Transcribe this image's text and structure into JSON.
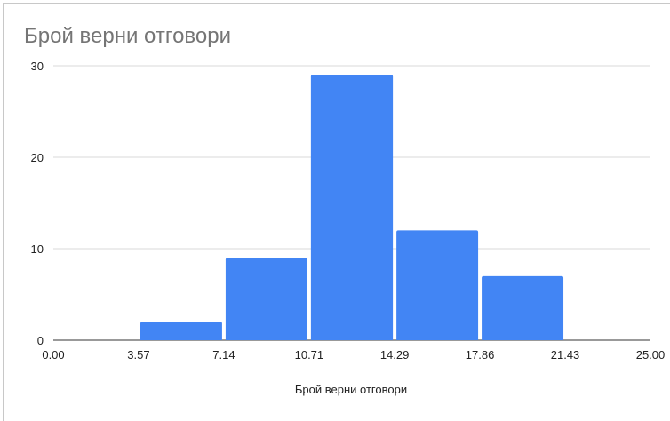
{
  "chart_data": {
    "type": "histogram",
    "title": "Брой верни отговори",
    "xlabel": "Брой верни отговори",
    "ylabel": "",
    "bin_edges": [
      0.0,
      3.57,
      7.14,
      10.71,
      14.29,
      17.86,
      21.43,
      25.0
    ],
    "x_tick_labels": [
      "0.00",
      "3.57",
      "7.14",
      "10.71",
      "14.29",
      "17.86",
      "21.43",
      "25.00"
    ],
    "values": [
      0,
      2,
      9,
      29,
      12,
      7,
      0
    ],
    "y_ticks": [
      0,
      10,
      20,
      30
    ],
    "xlim": [
      0,
      25
    ],
    "ylim": [
      0,
      30
    ],
    "grid": true,
    "bar_color": "#4285f4",
    "title_color": "#757575"
  }
}
